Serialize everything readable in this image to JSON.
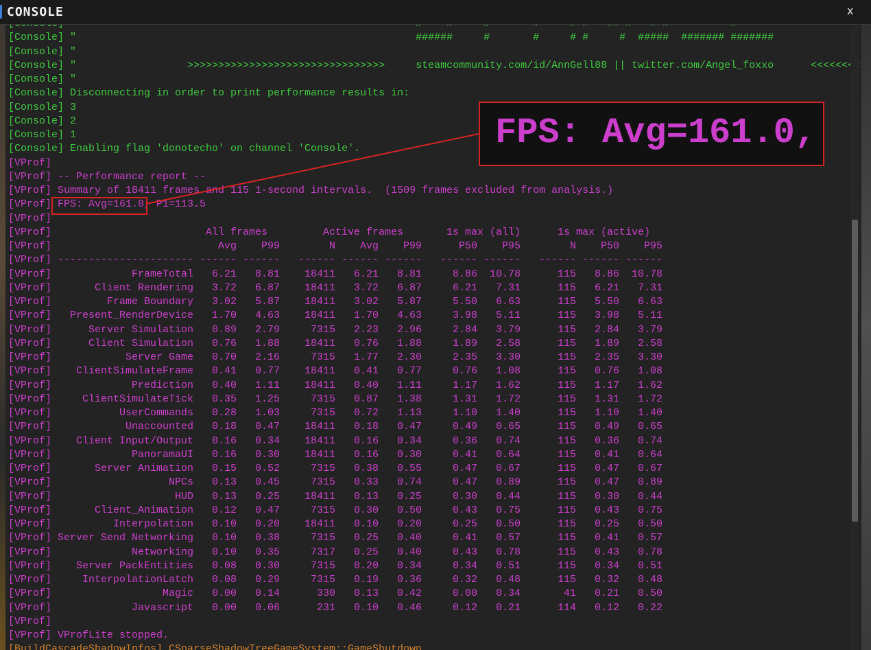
{
  "window": {
    "title": "CONSOLE",
    "close": "x"
  },
  "lines": [
    {
      "tag": "[Console]",
      "color": "#3fc93f",
      "text": "\"                                                       #    #     #       #     # #   ## #   # #          #"
    },
    {
      "tag": "[Console]",
      "color": "#3fc93f",
      "text": "\"                                                       ######     #       #     # #     #  #####  ####### #######"
    },
    {
      "tag": "[Console]",
      "color": "#3fc93f",
      "text": "\""
    },
    {
      "tag": "[Console]",
      "color": "#3fc93f",
      "text": "\"                  >>>>>>>>>>>>>>>>>>>>>>>>>>>>>>>>     steamcommunity.com/id/AnnGell88 || twitter.com/Angel_foxxo      <<<<<<<<"
    },
    {
      "tag": "[Console]",
      "color": "#3fc93f",
      "text": "\""
    },
    {
      "tag": "[Console]",
      "color": "#3fc93f",
      "text": "Disconnecting in order to print performance results in:"
    },
    {
      "tag": "[Console]",
      "color": "#3fc93f",
      "text": "3"
    },
    {
      "tag": "[Console]",
      "color": "#3fc93f",
      "text": "2"
    },
    {
      "tag": "[Console]",
      "color": "#3fc93f",
      "text": "1"
    },
    {
      "tag": "[Console]",
      "color": "#3fc93f",
      "text": "Enabling flag 'donotecho' on channel 'Console'."
    },
    {
      "tag": "[VProf]",
      "color": "#cc3fcc"
    },
    {
      "tag": "[VProf]",
      "color": "#cc3fcc",
      "text": "-- Performance report --"
    },
    {
      "tag": "[VProf]",
      "color": "#cc3fcc",
      "text": "Summary of 18411 frames and 115 1-second intervals.  (1509 frames excluded from analysis.)"
    },
    {
      "tag": "[VProf]",
      "color": "#cc3fcc",
      "text": "FPS: Avg=161.0, P1=113.5"
    },
    {
      "tag": "[VProf]",
      "color": "#cc3fcc"
    },
    {
      "tag": "[VProf]",
      "color": "#cc3fcc",
      "groups": [
        "All frames",
        "Active frames",
        "1s max (all)",
        "1s max (active)"
      ]
    },
    {
      "tag": "[VProf]",
      "color": "#cc3fcc",
      "columns": [
        "Avg",
        "P99",
        "N",
        "Avg",
        "P99",
        "P50",
        "P95",
        "N",
        "P50",
        "P95"
      ]
    },
    {
      "tag": "[VProf]",
      "color": "#cc3fcc",
      "cells": [
        "----------------------",
        "------",
        "------",
        "------",
        "------",
        "------",
        "------",
        "------",
        "------",
        "------",
        "------"
      ]
    },
    {
      "tag": "[VProf]",
      "color": "#cc3fcc",
      "cells": [
        "FrameTotal",
        "6.21",
        "8.81",
        "18411",
        "6.21",
        "8.81",
        "8.86",
        "10.78",
        "115",
        "8.86",
        "10.78"
      ]
    },
    {
      "tag": "[VProf]",
      "color": "#cc3fcc",
      "cells": [
        "Client Rendering",
        "3.72",
        "6.87",
        "18411",
        "3.72",
        "6.87",
        "6.21",
        "7.31",
        "115",
        "6.21",
        "7.31"
      ]
    },
    {
      "tag": "[VProf]",
      "color": "#cc3fcc",
      "cells": [
        "Frame Boundary",
        "3.02",
        "5.87",
        "18411",
        "3.02",
        "5.87",
        "5.50",
        "6.63",
        "115",
        "5.50",
        "6.63"
      ]
    },
    {
      "tag": "[VProf]",
      "color": "#cc3fcc",
      "cells": [
        "Present_RenderDevice",
        "1.70",
        "4.63",
        "18411",
        "1.70",
        "4.63",
        "3.98",
        "5.11",
        "115",
        "3.98",
        "5.11"
      ]
    },
    {
      "tag": "[VProf]",
      "color": "#cc3fcc",
      "cells": [
        "Server Simulation",
        "0.89",
        "2.79",
        "7315",
        "2.23",
        "2.96",
        "2.84",
        "3.79",
        "115",
        "2.84",
        "3.79"
      ]
    },
    {
      "tag": "[VProf]",
      "color": "#cc3fcc",
      "cells": [
        "Client Simulation",
        "0.76",
        "1.88",
        "18411",
        "0.76",
        "1.88",
        "1.89",
        "2.58",
        "115",
        "1.89",
        "2.58"
      ]
    },
    {
      "tag": "[VProf]",
      "color": "#cc3fcc",
      "cells": [
        "Server Game",
        "0.70",
        "2.16",
        "7315",
        "1.77",
        "2.30",
        "2.35",
        "3.30",
        "115",
        "2.35",
        "3.30"
      ]
    },
    {
      "tag": "[VProf]",
      "color": "#cc3fcc",
      "cells": [
        "ClientSimulateFrame",
        "0.41",
        "0.77",
        "18411",
        "0.41",
        "0.77",
        "0.76",
        "1.08",
        "115",
        "0.76",
        "1.08"
      ]
    },
    {
      "tag": "[VProf]",
      "color": "#cc3fcc",
      "cells": [
        "Prediction",
        "0.40",
        "1.11",
        "18411",
        "0.40",
        "1.11",
        "1.17",
        "1.62",
        "115",
        "1.17",
        "1.62"
      ]
    },
    {
      "tag": "[VProf]",
      "color": "#cc3fcc",
      "cells": [
        "ClientSimulateTick",
        "0.35",
        "1.25",
        "7315",
        "0.87",
        "1.38",
        "1.31",
        "1.72",
        "115",
        "1.31",
        "1.72"
      ]
    },
    {
      "tag": "[VProf]",
      "color": "#cc3fcc",
      "cells": [
        "UserCommands",
        "0.28",
        "1.03",
        "7315",
        "0.72",
        "1.13",
        "1.10",
        "1.40",
        "115",
        "1.10",
        "1.40"
      ]
    },
    {
      "tag": "[VProf]",
      "color": "#cc3fcc",
      "cells": [
        "Unaccounted",
        "0.18",
        "0.47",
        "18411",
        "0.18",
        "0.47",
        "0.49",
        "0.65",
        "115",
        "0.49",
        "0.65"
      ]
    },
    {
      "tag": "[VProf]",
      "color": "#cc3fcc",
      "cells": [
        "Client Input/Output",
        "0.16",
        "0.34",
        "18411",
        "0.16",
        "0.34",
        "0.36",
        "0.74",
        "115",
        "0.36",
        "0.74"
      ]
    },
    {
      "tag": "[VProf]",
      "color": "#cc3fcc",
      "cells": [
        "PanoramaUI",
        "0.16",
        "0.30",
        "18411",
        "0.16",
        "0.30",
        "0.41",
        "0.64",
        "115",
        "0.41",
        "0.64"
      ]
    },
    {
      "tag": "[VProf]",
      "color": "#cc3fcc",
      "cells": [
        "Server Animation",
        "0.15",
        "0.52",
        "7315",
        "0.38",
        "0.55",
        "0.47",
        "0.67",
        "115",
        "0.47",
        "0.67"
      ]
    },
    {
      "tag": "[VProf]",
      "color": "#cc3fcc",
      "cells": [
        "NPCs",
        "0.13",
        "0.45",
        "7315",
        "0.33",
        "0.74",
        "0.47",
        "0.89",
        "115",
        "0.47",
        "0.89"
      ]
    },
    {
      "tag": "[VProf]",
      "color": "#cc3fcc",
      "cells": [
        "HUD",
        "0.13",
        "0.25",
        "18411",
        "0.13",
        "0.25",
        "0.30",
        "0.44",
        "115",
        "0.30",
        "0.44"
      ]
    },
    {
      "tag": "[VProf]",
      "color": "#cc3fcc",
      "cells": [
        "Client_Animation",
        "0.12",
        "0.47",
        "7315",
        "0.30",
        "0.50",
        "0.43",
        "0.75",
        "115",
        "0.43",
        "0.75"
      ]
    },
    {
      "tag": "[VProf]",
      "color": "#cc3fcc",
      "cells": [
        "Interpolation",
        "0.10",
        "0.20",
        "18411",
        "0.10",
        "0.20",
        "0.25",
        "0.50",
        "115",
        "0.25",
        "0.50"
      ]
    },
    {
      "tag": "[VProf]",
      "color": "#cc3fcc",
      "cells": [
        "Server Send Networking",
        "0.10",
        "0.38",
        "7315",
        "0.25",
        "0.40",
        "0.41",
        "0.57",
        "115",
        "0.41",
        "0.57"
      ]
    },
    {
      "tag": "[VProf]",
      "color": "#cc3fcc",
      "cells": [
        "Networking",
        "0.10",
        "0.35",
        "7317",
        "0.25",
        "0.40",
        "0.43",
        "0.78",
        "115",
        "0.43",
        "0.78"
      ]
    },
    {
      "tag": "[VProf]",
      "color": "#cc3fcc",
      "cells": [
        "Server PackEntities",
        "0.08",
        "0.30",
        "7315",
        "0.20",
        "0.34",
        "0.34",
        "0.51",
        "115",
        "0.34",
        "0.51"
      ]
    },
    {
      "tag": "[VProf]",
      "color": "#cc3fcc",
      "cells": [
        "InterpolationLatch",
        "0.08",
        "0.29",
        "7315",
        "0.19",
        "0.36",
        "0.32",
        "0.48",
        "115",
        "0.32",
        "0.48"
      ]
    },
    {
      "tag": "[VProf]",
      "color": "#cc3fcc",
      "cells": [
        "Magic",
        "0.00",
        "0.14",
        "330",
        "0.13",
        "0.42",
        "0.00",
        "0.34",
        "41",
        "0.21",
        "0.50"
      ]
    },
    {
      "tag": "[VProf]",
      "color": "#cc3fcc",
      "cells": [
        "Javascript",
        "0.00",
        "0.06",
        "231",
        "0.10",
        "0.46",
        "0.12",
        "0.21",
        "114",
        "0.12",
        "0.22"
      ]
    },
    {
      "tag": "[VProf]",
      "color": "#cc3fcc"
    },
    {
      "tag": "[VProf]",
      "color": "#cc3fcc",
      "text": "VProfLite stopped."
    },
    {
      "tag": "[BuildCascadeShadowInfos]",
      "color": "#d0802c",
      "text": "CSparseShadowTreeGameSystem::GameShutdown"
    }
  ],
  "zoom_callout": {
    "text": "FPS: Avg=161.0,"
  }
}
